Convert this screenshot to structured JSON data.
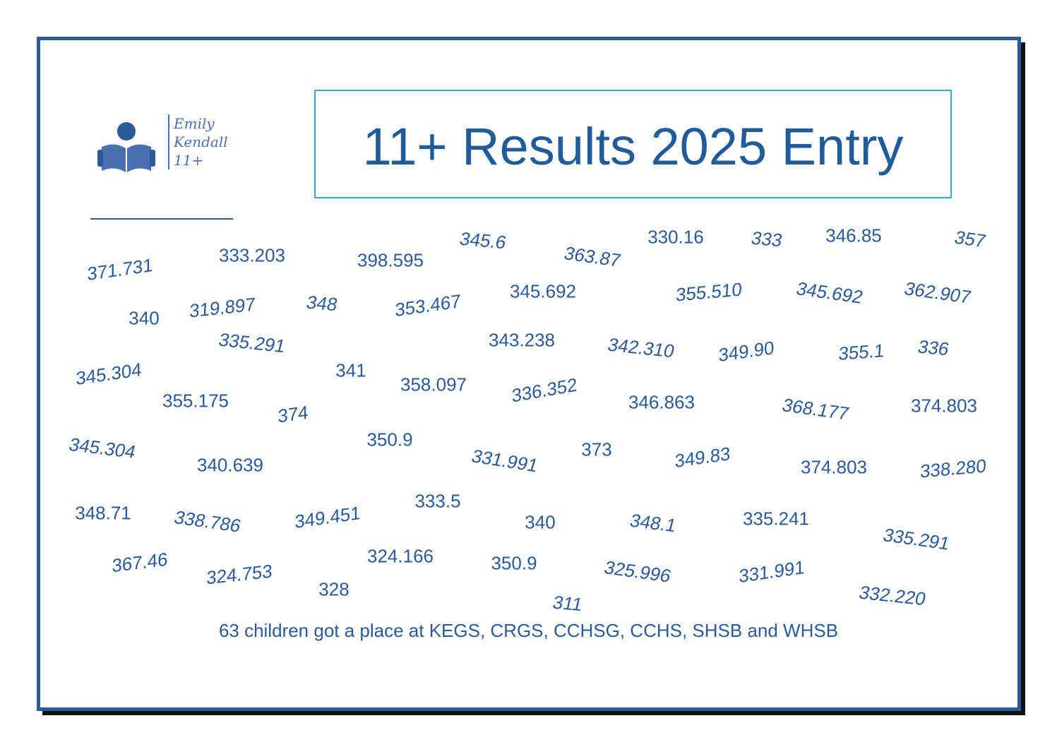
{
  "logo": {
    "name_line1": "Emily",
    "name_line2": "Kendall",
    "name_line3": "11+"
  },
  "title": "11+ Results 2025 Entry",
  "scores": [
    "371.731",
    "333.203",
    "398.595",
    "345.6",
    "363.87",
    "330.16",
    "333",
    "346.85",
    "357",
    "340",
    "319.897",
    "348",
    "353.467",
    "345.692",
    "355.510",
    "345.692",
    "362.907",
    "335.291",
    "343.238",
    "342.310",
    "349.90",
    "355.1",
    "336",
    "345.304",
    "341",
    "358.097",
    "336.352",
    "355.175",
    "374",
    "346.863",
    "368.177",
    "374.803",
    "345.304",
    "350.9",
    "331.991",
    "373",
    "349.83",
    "340.639",
    "374.803",
    "338.280",
    "348.71",
    "338.786",
    "349.451",
    "333.5",
    "340",
    "348.1",
    "335.241",
    "335.291",
    "367.46",
    "324.753",
    "324.166",
    "350.9",
    "325.996",
    "331.991",
    "328",
    "311",
    "332.220"
  ],
  "footer": "63 children got a place at KEGS, CRGS, CCHSG, CCHS, SHSB and WHSB"
}
